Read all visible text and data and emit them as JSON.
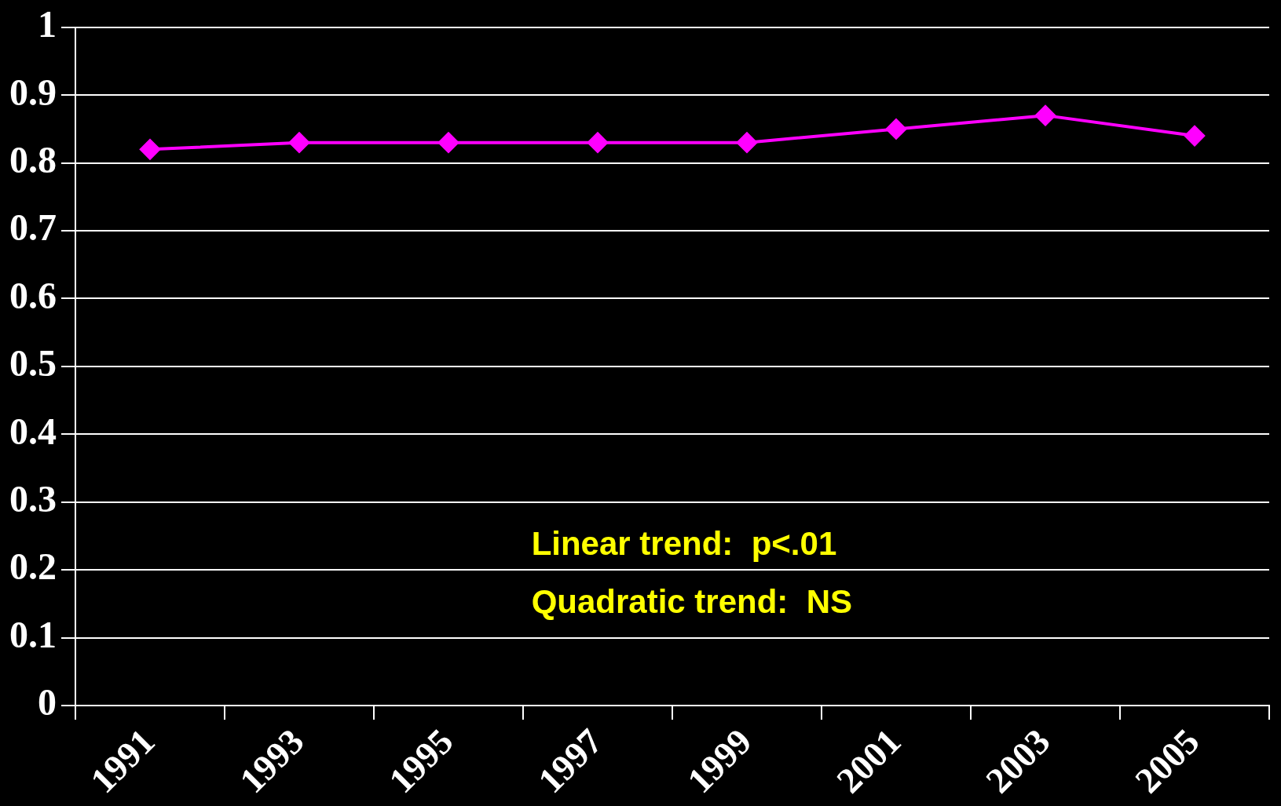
{
  "chart_data": {
    "type": "line",
    "categories": [
      "1991",
      "1993",
      "1995",
      "1997",
      "1999",
      "2001",
      "2003",
      "2005"
    ],
    "series": [
      {
        "color": "#ff00ff",
        "values": [
          0.82,
          0.83,
          0.83,
          0.83,
          0.83,
          0.85,
          0.87,
          0.84
        ]
      }
    ],
    "ylim": [
      0,
      1
    ],
    "yticks": [
      0,
      0.1,
      0.2,
      0.3,
      0.4,
      0.5,
      0.6,
      0.7,
      0.8,
      0.9,
      1
    ],
    "grid": "y",
    "legend": false,
    "marker": "diamond",
    "line_style": "solid",
    "annotations": [
      "Linear trend:  p<.01",
      "Quadratic trend:  NS"
    ]
  }
}
